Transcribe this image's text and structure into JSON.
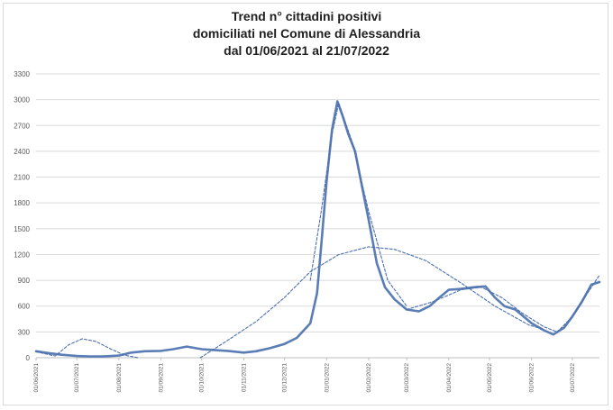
{
  "chart_data": {
    "type": "line",
    "title_lines": [
      "Trend n° cittadini positivi",
      "domiciliati nel Comune di Alessandria",
      "dal 01/06/2021 al 21/07/2022"
    ],
    "xlabel": "",
    "ylabel": "",
    "ylim": [
      0,
      3300
    ],
    "yticks": [
      "0",
      "300",
      "600",
      "900",
      "1200",
      "1500",
      "1800",
      "2100",
      "2400",
      "2700",
      "3000",
      "3300"
    ],
    "x_start": "2021-06-01",
    "x_end": "2022-07-21",
    "xticks": [
      "01/06/2021",
      "01/07/2021",
      "01/08/2021",
      "01/09/2021",
      "01/10/2021",
      "01/11/2021",
      "01/12/2021",
      "01/01/2022",
      "01/02/2022",
      "01/03/2022",
      "01/04/2022",
      "01/05/2022",
      "01/06/2022",
      "01/07/2022"
    ],
    "grid": true,
    "legend": "none",
    "series": [
      {
        "style": "solid",
        "color": "#5b7db5",
        "points": [
          [
            "2021-06-01",
            75
          ],
          [
            "2021-06-10",
            55
          ],
          [
            "2021-06-20",
            35
          ],
          [
            "2021-07-01",
            20
          ],
          [
            "2021-07-10",
            15
          ],
          [
            "2021-07-20",
            15
          ],
          [
            "2021-08-01",
            25
          ],
          [
            "2021-08-10",
            60
          ],
          [
            "2021-08-20",
            75
          ],
          [
            "2021-09-01",
            80
          ],
          [
            "2021-09-10",
            100
          ],
          [
            "2021-09-20",
            130
          ],
          [
            "2021-10-01",
            100
          ],
          [
            "2021-10-10",
            90
          ],
          [
            "2021-10-20",
            80
          ],
          [
            "2021-11-01",
            60
          ],
          [
            "2021-11-10",
            75
          ],
          [
            "2021-11-20",
            110
          ],
          [
            "2021-12-01",
            160
          ],
          [
            "2021-12-10",
            230
          ],
          [
            "2021-12-20",
            400
          ],
          [
            "2021-12-25",
            750
          ],
          [
            "2021-12-28",
            1300
          ],
          [
            "2022-01-01",
            2050
          ],
          [
            "2022-01-05",
            2650
          ],
          [
            "2022-01-09",
            2980
          ],
          [
            "2022-01-13",
            2800
          ],
          [
            "2022-01-17",
            2600
          ],
          [
            "2022-01-22",
            2400
          ],
          [
            "2022-01-27",
            2000
          ],
          [
            "2022-02-01",
            1600
          ],
          [
            "2022-02-07",
            1100
          ],
          [
            "2022-02-13",
            820
          ],
          [
            "2022-02-20",
            680
          ],
          [
            "2022-03-01",
            560
          ],
          [
            "2022-03-10",
            540
          ],
          [
            "2022-03-18",
            600
          ],
          [
            "2022-03-25",
            700
          ],
          [
            "2022-04-01",
            790
          ],
          [
            "2022-04-10",
            800
          ],
          [
            "2022-04-20",
            820
          ],
          [
            "2022-04-28",
            830
          ],
          [
            "2022-05-05",
            700
          ],
          [
            "2022-05-12",
            600
          ],
          [
            "2022-05-20",
            560
          ],
          [
            "2022-06-01",
            400
          ],
          [
            "2022-06-10",
            320
          ],
          [
            "2022-06-17",
            270
          ],
          [
            "2022-06-25",
            350
          ],
          [
            "2022-07-01",
            480
          ],
          [
            "2022-07-08",
            650
          ],
          [
            "2022-07-15",
            850
          ],
          [
            "2022-07-21",
            880
          ]
        ]
      },
      {
        "style": "dashed",
        "color": "#4a6fae",
        "points": [
          [
            "2021-06-01",
            70
          ],
          [
            "2021-06-15",
            20
          ],
          [
            "2021-06-25",
            150
          ],
          [
            "2021-07-05",
            220
          ],
          [
            "2021-07-15",
            190
          ],
          [
            "2021-07-25",
            110
          ],
          [
            "2021-08-05",
            30
          ],
          [
            "2021-08-15",
            0
          ]
        ]
      },
      {
        "style": "dashed",
        "color": "#4a6fae",
        "points": [
          [
            "2021-09-30",
            0
          ],
          [
            "2021-10-20",
            200
          ],
          [
            "2021-11-10",
            420
          ],
          [
            "2021-12-01",
            700
          ],
          [
            "2021-12-20",
            1000
          ],
          [
            "2022-01-10",
            1200
          ],
          [
            "2022-02-01",
            1290
          ],
          [
            "2022-02-20",
            1260
          ],
          [
            "2022-03-15",
            1130
          ],
          [
            "2022-04-10",
            870
          ],
          [
            "2022-05-05",
            600
          ],
          [
            "2022-05-30",
            380
          ],
          [
            "2022-06-10",
            330
          ]
        ]
      },
      {
        "style": "dashed",
        "color": "#4a6fae",
        "points": [
          [
            "2021-12-20",
            900
          ],
          [
            "2021-12-28",
            1700
          ],
          [
            "2022-01-05",
            2600
          ],
          [
            "2022-01-10",
            2960
          ],
          [
            "2022-01-20",
            2500
          ],
          [
            "2022-02-01",
            1700
          ],
          [
            "2022-02-15",
            900
          ],
          [
            "2022-03-01",
            600
          ]
        ]
      },
      {
        "style": "dashed",
        "color": "#4a6fae",
        "points": [
          [
            "2022-03-01",
            560
          ],
          [
            "2022-03-20",
            650
          ],
          [
            "2022-04-10",
            790
          ],
          [
            "2022-04-25",
            820
          ],
          [
            "2022-05-10",
            700
          ],
          [
            "2022-05-25",
            520
          ],
          [
            "2022-06-10",
            360
          ],
          [
            "2022-06-20",
            300
          ],
          [
            "2022-07-01",
            480
          ],
          [
            "2022-07-10",
            700
          ],
          [
            "2022-07-21",
            960
          ]
        ]
      }
    ]
  }
}
